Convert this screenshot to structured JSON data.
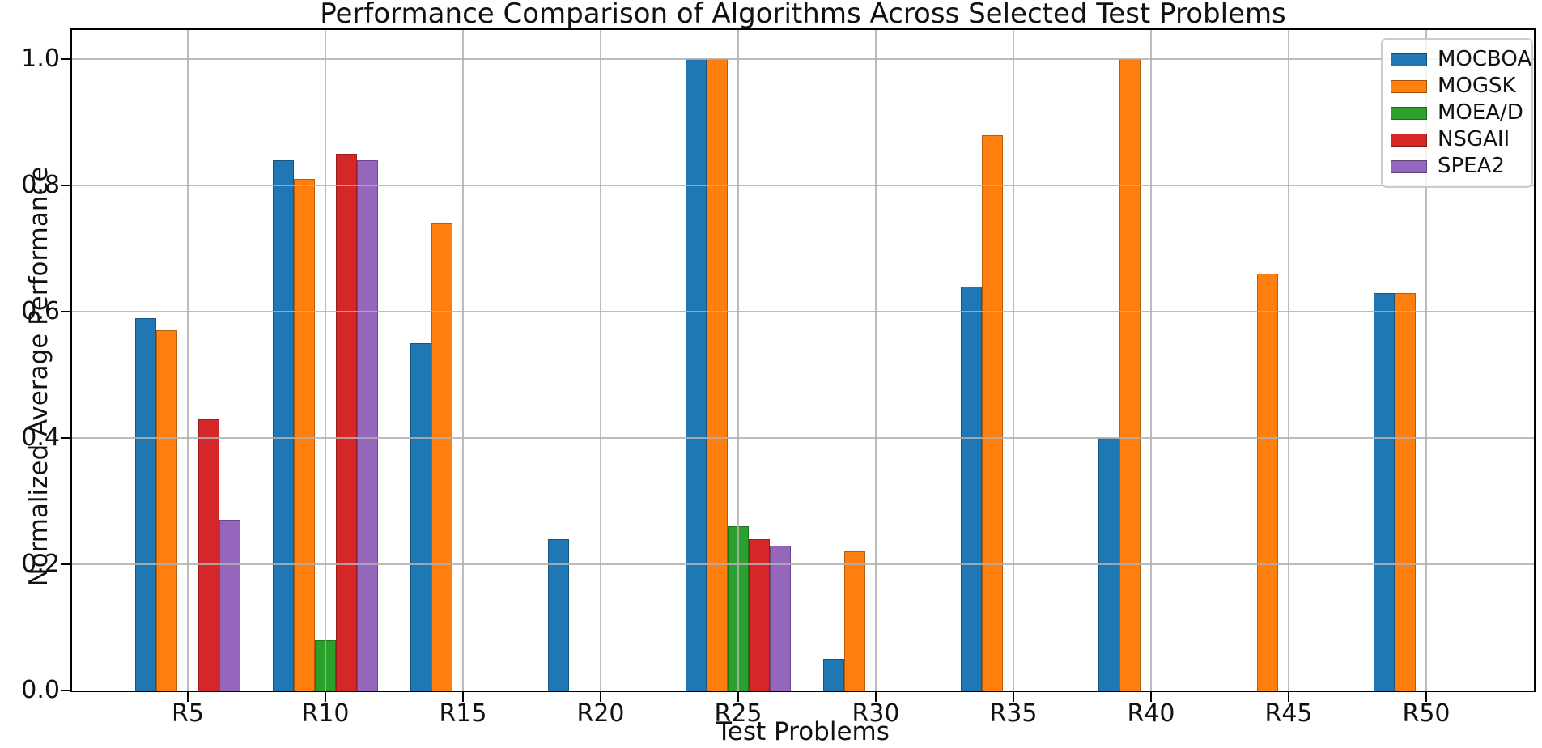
{
  "figure": {
    "title": "Performance Comparison of Algorithms Across Selected Test Problems",
    "xlabel": "Test Problems",
    "ylabel": "Normalized Average Performance"
  },
  "chart_data": {
    "type": "bar",
    "title": "Performance Comparison of Algorithms Across Selected Test Problems",
    "xlabel": "Test Problems",
    "ylabel": "Normalized Average Performance",
    "categories": [
      "R5",
      "R10",
      "R15",
      "R20",
      "R25",
      "R30",
      "R35",
      "R40",
      "R45",
      "R50"
    ],
    "series": [
      {
        "name": "MOCBOA",
        "color": "#1f77b4",
        "values": [
          0.59,
          0.84,
          0.55,
          0.24,
          1.0,
          0.05,
          0.64,
          0.4,
          0.0,
          0.63
        ]
      },
      {
        "name": "MOGSK",
        "color": "#ff7f0e",
        "values": [
          0.57,
          0.81,
          0.74,
          0.0,
          1.0,
          0.22,
          0.88,
          1.0,
          0.66,
          0.63
        ]
      },
      {
        "name": "MOEA/D",
        "color": "#2ca02c",
        "values": [
          0.0,
          0.08,
          0.0,
          0.0,
          0.26,
          0.0,
          0.0,
          0.0,
          0.0,
          0.0
        ]
      },
      {
        "name": "NSGAII",
        "color": "#d62728",
        "values": [
          0.43,
          0.85,
          0.0,
          0.0,
          0.24,
          0.0,
          0.0,
          0.0,
          0.0,
          0.0
        ]
      },
      {
        "name": "SPEA2",
        "color": "#9467bd",
        "values": [
          0.27,
          0.84,
          0.0,
          0.0,
          0.23,
          0.0,
          0.0,
          0.0,
          0.0,
          0.0
        ]
      }
    ],
    "ylim": [
      0.0,
      1.05
    ],
    "yticks": [
      "0.0",
      "0.2",
      "0.4",
      "0.6",
      "0.8",
      "1.0"
    ],
    "grid": "both",
    "grid_color": "#b0b0b0",
    "spine_color": "#000000",
    "legend_position": "upper right",
    "legend_entries": [
      "MOCBOA",
      "MOGSK",
      "MOEA/D",
      "NSGAII",
      "SPEA2"
    ]
  }
}
